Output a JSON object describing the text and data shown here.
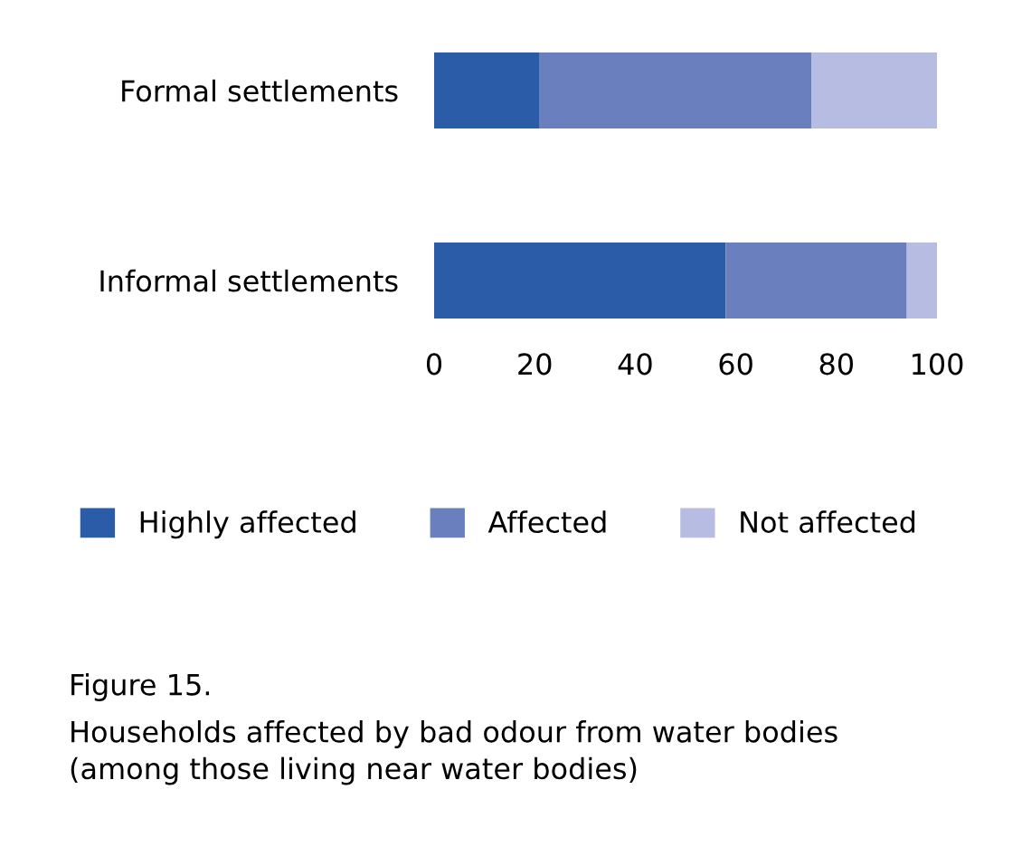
{
  "chart_data": {
    "type": "bar",
    "orientation": "horizontal",
    "stacked": true,
    "categories": [
      "Formal settlements",
      "Informal settlements"
    ],
    "series": [
      {
        "name": "Highly affected",
        "color": "#2b5ca8",
        "values": [
          21,
          58
        ]
      },
      {
        "name": "Affected",
        "color": "#6a7fbd",
        "values": [
          54,
          36
        ]
      },
      {
        "name": "Not affected",
        "color": "#b7bde2",
        "values": [
          25,
          6
        ]
      }
    ],
    "xlim": [
      0,
      100
    ],
    "xticks": [
      0,
      20,
      40,
      60,
      80,
      100
    ],
    "grid": false,
    "legend": "bottom",
    "annotations": [
      "Figure 15.",
      "Households affected by bad odour from water bodies\n(among those living near water bodies)"
    ]
  }
}
